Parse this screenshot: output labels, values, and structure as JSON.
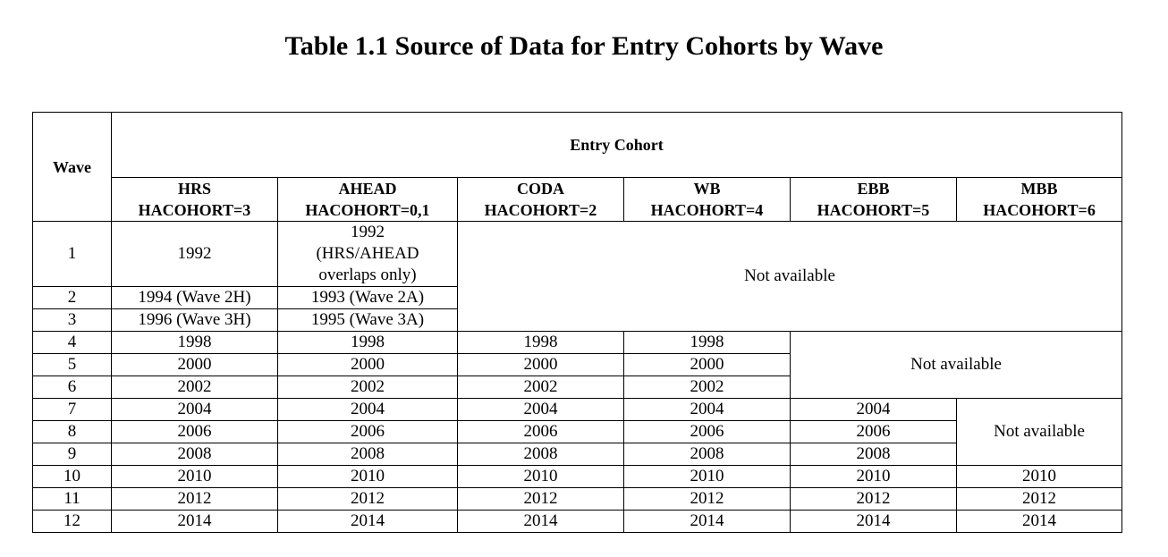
{
  "title": "Table 1.1 Source of Data for Entry Cohorts by Wave",
  "header": {
    "wave": "Wave",
    "entry_cohort": "Entry Cohort",
    "cohorts": [
      {
        "name": "HRS",
        "code": "HACOHORT=3"
      },
      {
        "name": "AHEAD",
        "code": "HACOHORT=0,1"
      },
      {
        "name": "CODA",
        "code": "HACOHORT=2"
      },
      {
        "name": "WB",
        "code": "HACOHORT=4"
      },
      {
        "name": "EBB",
        "code": "HACOHORT=5"
      },
      {
        "name": "MBB",
        "code": "HACOHORT=6"
      }
    ]
  },
  "not_available": "Not available",
  "rows": [
    {
      "wave": "1",
      "hrs": "1992",
      "ahead": [
        "1992",
        "(HRS/AHEAD",
        "overlaps only)"
      ]
    },
    {
      "wave": "2",
      "hrs": "1994 (Wave 2H)",
      "ahead": "1993 (Wave 2A)"
    },
    {
      "wave": "3",
      "hrs": "1996 (Wave 3H)",
      "ahead": "1995 (Wave 3A)"
    },
    {
      "wave": "4",
      "hrs": "1998",
      "ahead": "1998",
      "coda": "1998",
      "wb": "1998"
    },
    {
      "wave": "5",
      "hrs": "2000",
      "ahead": "2000",
      "coda": "2000",
      "wb": "2000"
    },
    {
      "wave": "6",
      "hrs": "2002",
      "ahead": "2002",
      "coda": "2002",
      "wb": "2002"
    },
    {
      "wave": "7",
      "hrs": "2004",
      "ahead": "2004",
      "coda": "2004",
      "wb": "2004",
      "ebb": "2004"
    },
    {
      "wave": "8",
      "hrs": "2006",
      "ahead": "2006",
      "coda": "2006",
      "wb": "2006",
      "ebb": "2006"
    },
    {
      "wave": "9",
      "hrs": "2008",
      "ahead": "2008",
      "coda": "2008",
      "wb": "2008",
      "ebb": "2008"
    },
    {
      "wave": "10",
      "hrs": "2010",
      "ahead": "2010",
      "coda": "2010",
      "wb": "2010",
      "ebb": "2010",
      "mbb": "2010"
    },
    {
      "wave": "11",
      "hrs": "2012",
      "ahead": "2012",
      "coda": "2012",
      "wb": "2012",
      "ebb": "2012",
      "mbb": "2012"
    },
    {
      "wave": "12",
      "hrs": "2014",
      "ahead": "2014",
      "coda": "2014",
      "wb": "2014",
      "ebb": "2014",
      "mbb": "2014"
    }
  ]
}
